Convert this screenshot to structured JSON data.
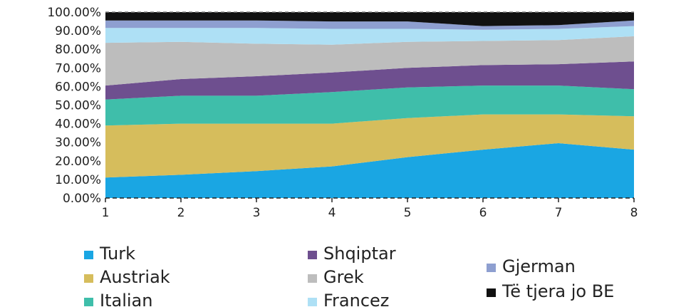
{
  "chart_data": {
    "type": "area",
    "stacked": true,
    "x": [
      1,
      2,
      3,
      4,
      5,
      6,
      7,
      8
    ],
    "ylim": [
      0,
      100
    ],
    "yticks": [
      "0.00%",
      "10.00%",
      "20.00%",
      "30.00%",
      "40.00%",
      "50.00%",
      "60.00%",
      "70.00%",
      "80.00%",
      "90.00%",
      "100.00%"
    ],
    "xticks": [
      "1",
      "2",
      "3",
      "4",
      "5",
      "6",
      "7",
      "8"
    ],
    "legend_position": "bottom",
    "series": [
      {
        "name": "Turk",
        "color": "#1aa6e3",
        "values": [
          11,
          12.5,
          14.5,
          17,
          22,
          26,
          29.5,
          26
        ]
      },
      {
        "name": "Austriak",
        "color": "#d6bd5c",
        "values": [
          28,
          27.5,
          25.5,
          23,
          21,
          19,
          15.5,
          18
        ]
      },
      {
        "name": "Italian",
        "color": "#3fbeaa",
        "values": [
          14,
          15,
          15,
          17,
          16.5,
          15.5,
          15.5,
          14.5
        ]
      },
      {
        "name": "Shqiptar",
        "color": "#6e4f8f",
        "values": [
          7.5,
          9,
          10.5,
          10.5,
          10.5,
          11,
          11.5,
          15
        ]
      },
      {
        "name": "Grek",
        "color": "#bdbdbd",
        "values": [
          23,
          20,
          17.5,
          15,
          14,
          13,
          13,
          13.5
        ]
      },
      {
        "name": "Francez",
        "color": "#aee0f5",
        "values": [
          8,
          7.5,
          8.5,
          8.5,
          7,
          6,
          6,
          5.5
        ]
      },
      {
        "name": "Gjerman",
        "color": "#8e9fd0",
        "values": [
          4,
          4,
          4,
          4,
          4,
          2,
          2,
          3
        ]
      },
      {
        "name": "Të tjera jo BE",
        "color": "#111111",
        "values": [
          4.5,
          4.5,
          4.5,
          5,
          5,
          7.5,
          7,
          4.5
        ]
      }
    ]
  }
}
